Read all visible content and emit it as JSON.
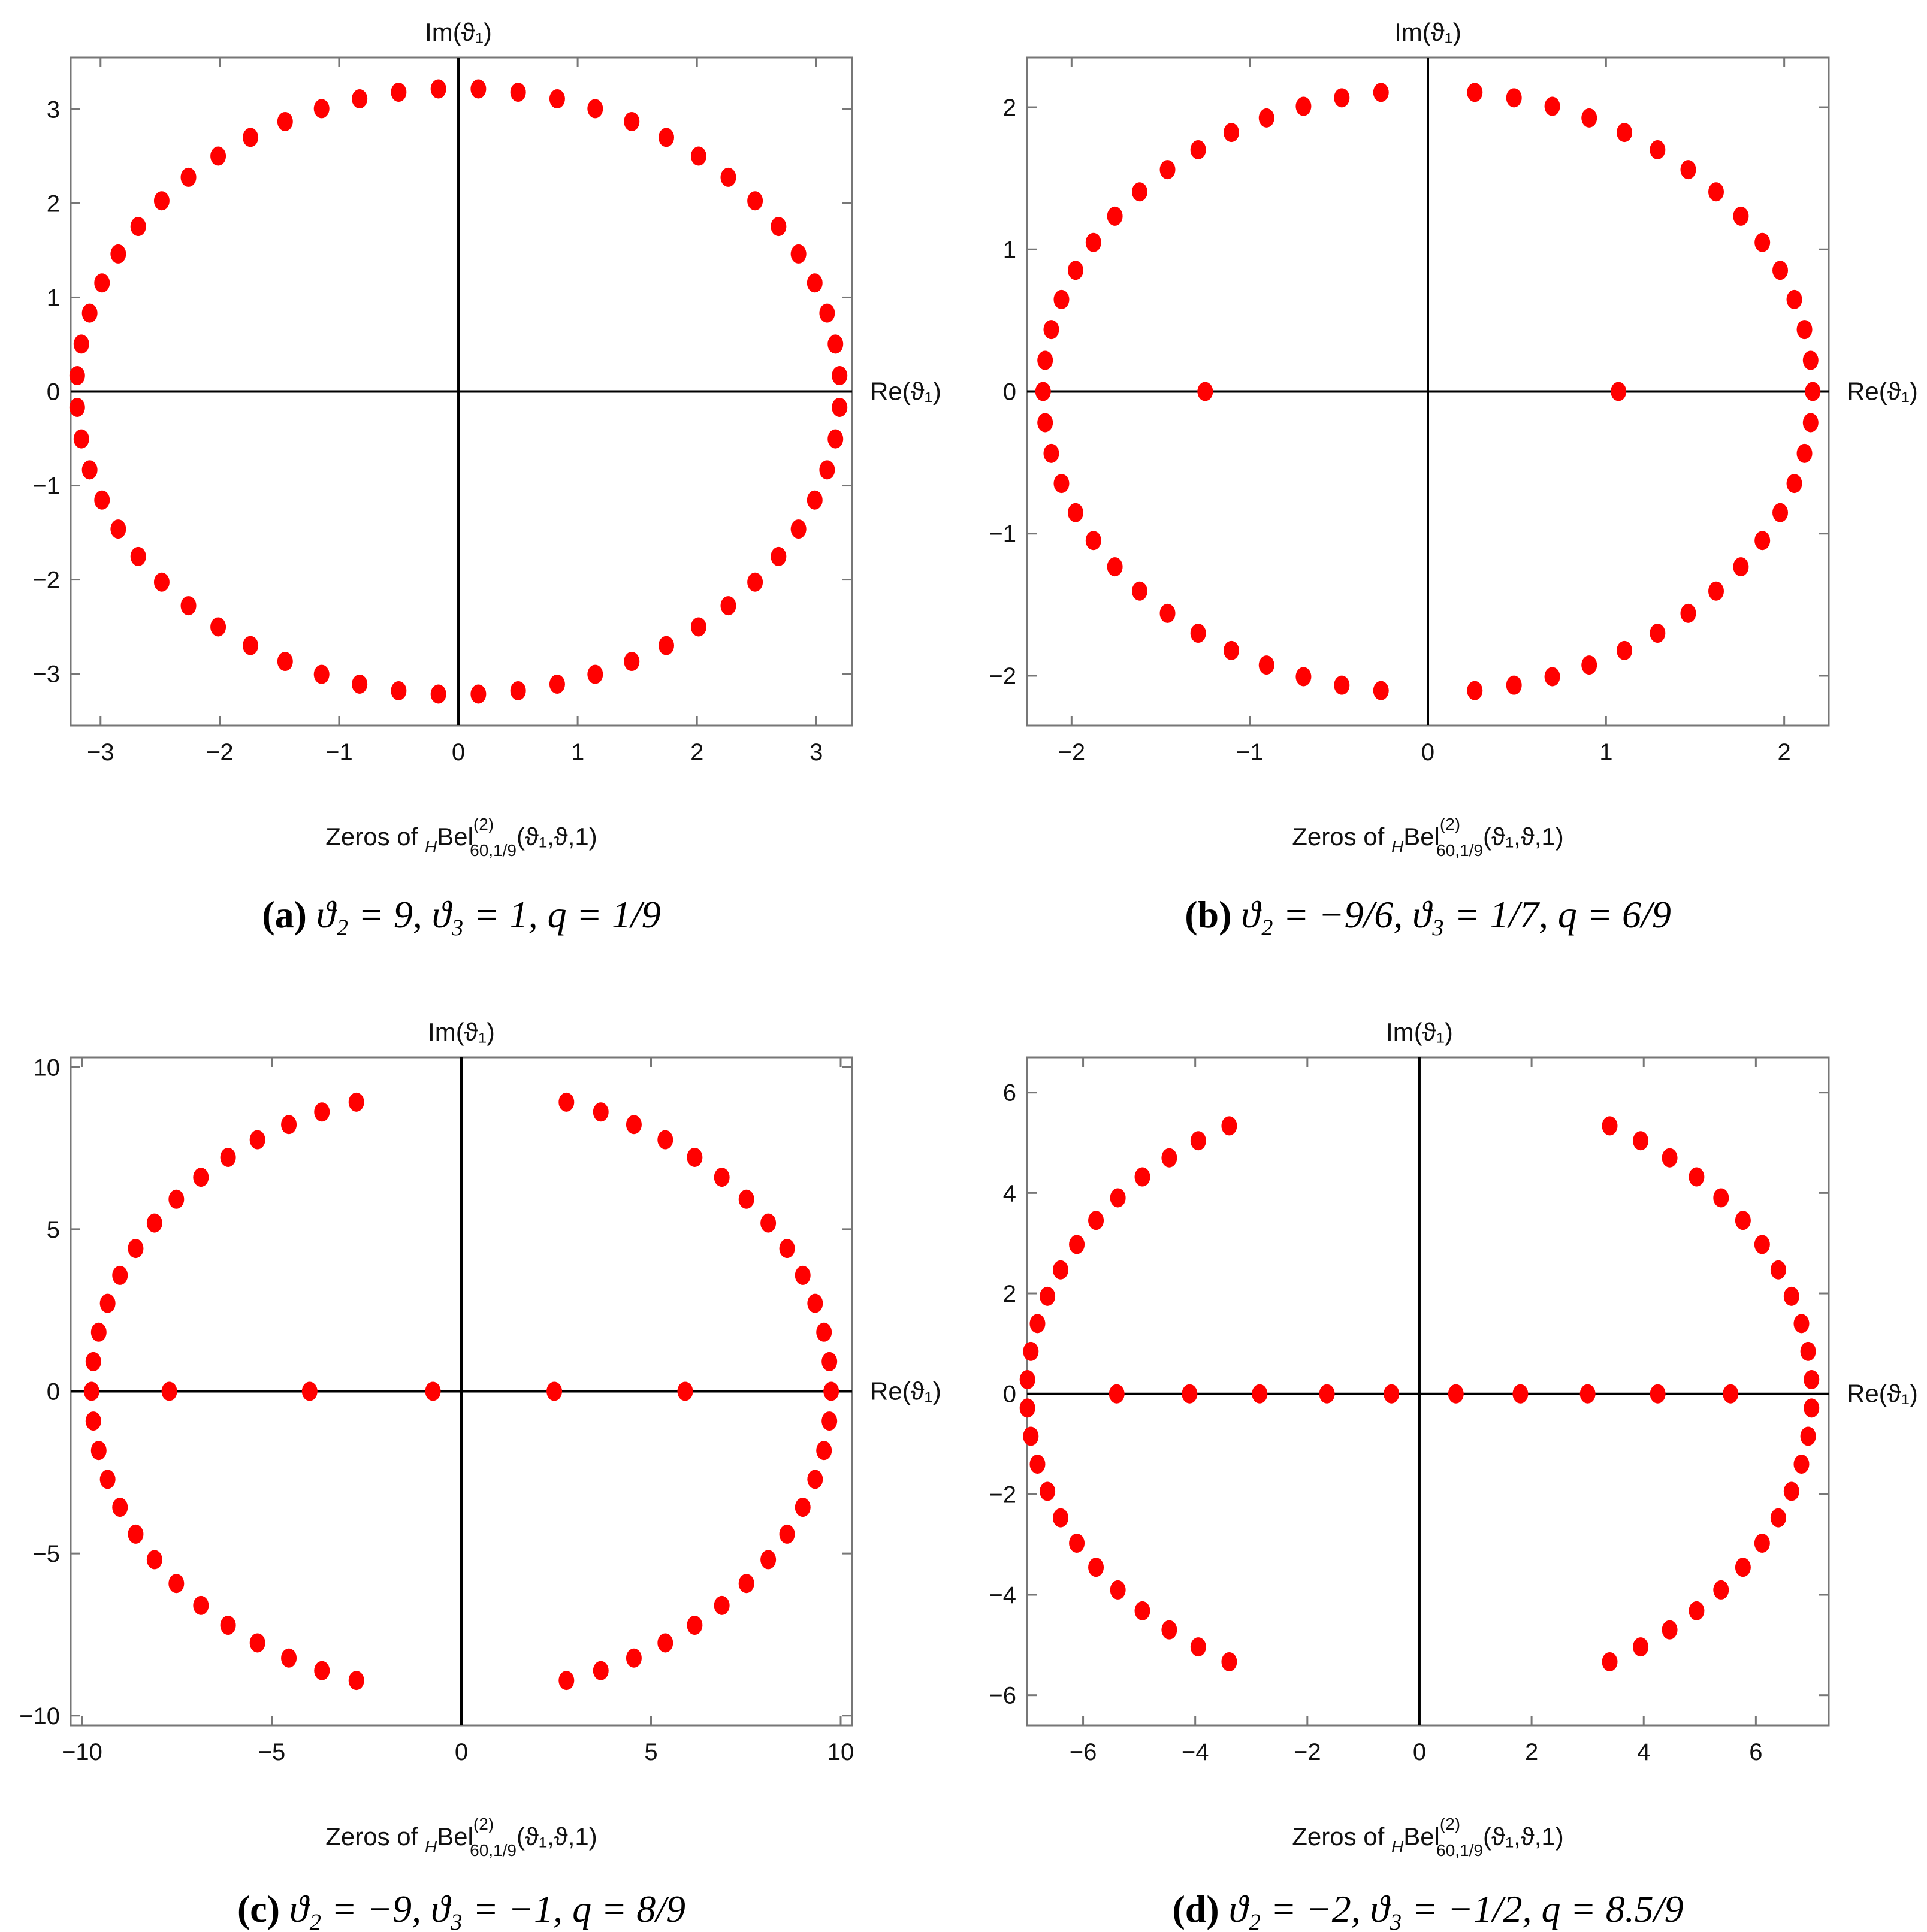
{
  "chart_data": [
    {
      "type": "scatter",
      "panel": "a",
      "caption_letter": "(a)",
      "caption_text": "ϑ₂ = 9, ϑ₃ = 1, q = 1/9",
      "xlabel_prefix": "Zeros of ",
      "xlabel_func": "Bel",
      "xlabel_pre_sub": "H",
      "xlabel_sup": "(2)",
      "xlabel_sub": "60,1/9",
      "xlabel_args": "(ϑ₁,ϑ,1)",
      "axis_x_name": "Re(ϑ₁)",
      "axis_y_name": "Im(ϑ₁)",
      "xlim": [
        -3.25,
        3.3
      ],
      "ylim": [
        -3.55,
        3.55
      ],
      "xticks": [
        -3,
        -2,
        -1,
        0,
        1,
        2,
        3
      ],
      "yticks": [
        -3,
        -2,
        -1,
        0,
        1,
        2,
        3
      ],
      "marker_color": "#ff0000",
      "ring": {
        "n_points": 60,
        "radius_x": 3.2,
        "radius_y": 3.22,
        "angle_offset_deg": 3
      },
      "real_zeros": []
    },
    {
      "type": "scatter",
      "panel": "b",
      "caption_letter": "(b)",
      "caption_text": "ϑ₂ = −9/6, ϑ₃ = 1/7, q = 6/9",
      "xlabel_prefix": "Zeros of ",
      "xlabel_func": "Bel",
      "xlabel_pre_sub": "H",
      "xlabel_sup": "(2)",
      "xlabel_sub": "60,1/9",
      "xlabel_args": "(ϑ₁,ϑ,1)",
      "axis_x_name": "Re(ϑ₁)",
      "axis_y_name": "Im(ϑ₁)",
      "xlim": [
        -2.25,
        2.25
      ],
      "ylim": [
        -2.35,
        2.35
      ],
      "xticks": [
        -2,
        -1,
        0,
        1,
        2
      ],
      "yticks": [
        -2,
        -1,
        0,
        1,
        2
      ],
      "marker_color": "#ff0000",
      "ring": {
        "n_points": 58,
        "radius_x": 2.16,
        "radius_y": 2.12,
        "angle_offset_deg": 0,
        "gap_deg": 14
      },
      "real_zeros": [
        -1.25,
        1.07
      ]
    },
    {
      "type": "scatter",
      "panel": "c",
      "caption_letter": "(c)",
      "caption_text": "ϑ₂ = −9, ϑ₃ = −1, q = 8/9",
      "xlabel_prefix": "Zeros of ",
      "xlabel_func": "Bel",
      "xlabel_pre_sub": "H",
      "xlabel_sup": "(2)",
      "xlabel_sub": "60,1/9",
      "xlabel_args": "(ϑ₁,ϑ,1)",
      "axis_x_name": "Re(ϑ₁)",
      "axis_y_name": "Im(ϑ₁)",
      "xlim": [
        -10.3,
        10.3
      ],
      "ylim": [
        -10.3,
        10.3
      ],
      "xticks": [
        -10,
        -5,
        0,
        5,
        10
      ],
      "yticks": [
        -10,
        -5,
        0,
        5,
        10
      ],
      "marker_color": "#ff0000",
      "ring": {
        "n_points": 54,
        "radius_x": 9.75,
        "radius_y": 9.3,
        "angle_offset_deg": 0,
        "gap_deg": 33
      },
      "real_zeros": [
        -7.7,
        -4.0,
        -0.75,
        2.45,
        5.9
      ]
    },
    {
      "type": "scatter",
      "panel": "d",
      "caption_letter": "(d)",
      "caption_text": "ϑ₂ = −2, ϑ₃ = −1/2, q = 8.5/9",
      "xlabel_prefix": "Zeros of ",
      "xlabel_func": "Bel",
      "xlabel_pre_sub": "H",
      "xlabel_sup": "(2)",
      "xlabel_sub": "60,1/9",
      "xlabel_args": "(ϑ₁,ϑ,1)",
      "axis_x_name": "Re(ϑ₁)",
      "axis_y_name": "Im(ϑ₁)",
      "xlim": [
        -7.0,
        7.3
      ],
      "ylim": [
        -6.6,
        6.7
      ],
      "xticks": [
        -6,
        -4,
        -2,
        0,
        2,
        4,
        6
      ],
      "yticks": [
        -6,
        -4,
        -2,
        0,
        2,
        4,
        6
      ],
      "marker_color": "#ff0000",
      "ring": {
        "n_points": 48,
        "radius_x": 7.0,
        "radius_y": 6.1,
        "angle_offset_deg": 0,
        "gap_deg": 58
      },
      "real_zeros": [
        -5.4,
        -4.1,
        -2.85,
        -1.65,
        -0.5,
        0.65,
        1.8,
        3.0,
        4.25,
        5.55
      ]
    }
  ]
}
